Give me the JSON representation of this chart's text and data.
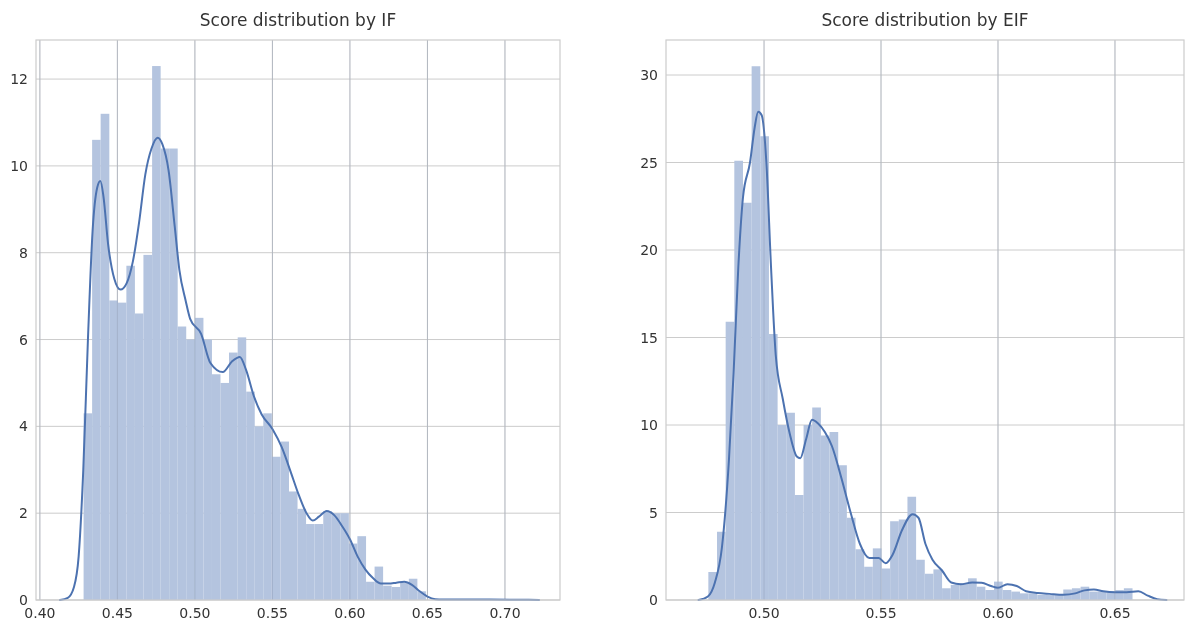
{
  "chart_data": [
    {
      "type": "histogram",
      "title": "Score distribution by IF",
      "color": "#b4c4df",
      "grid": true,
      "bins": [
        0.4282,
        0.4337,
        0.4392,
        0.4448,
        0.4503,
        0.4558,
        0.4613,
        0.4668,
        0.4724,
        0.4779,
        0.4834,
        0.4889,
        0.4944,
        0.5,
        0.5055,
        0.511,
        0.5165,
        0.522,
        0.5276,
        0.5331,
        0.5386,
        0.5441,
        0.5496,
        0.5552,
        0.5607,
        0.5662,
        0.5717,
        0.5772,
        0.5828,
        0.5883,
        0.5938,
        0.5993,
        0.6048,
        0.6104,
        0.6159,
        0.6214,
        0.6269,
        0.6324,
        0.638,
        0.6435,
        0.649
      ],
      "values": [
        4.3,
        10.6,
        11.2,
        6.9,
        6.85,
        7.7,
        6.6,
        7.95,
        12.3,
        10.4,
        10.4,
        6.3,
        6.0,
        6.5,
        6.0,
        5.2,
        5.0,
        5.7,
        6.05,
        4.8,
        4.0,
        4.3,
        3.3,
        3.65,
        2.5,
        2.1,
        1.75,
        1.75,
        2.05,
        2.0,
        2.0,
        1.3,
        1.47,
        0.42,
        0.77,
        0.33,
        0.3,
        0.4,
        0.49,
        0.2
      ],
      "series": [
        {
          "type": "line",
          "color": "#4c72b0",
          "x": [
            0.413,
            0.418,
            0.422,
            0.425,
            0.428,
            0.431,
            0.434,
            0.437,
            0.439,
            0.441,
            0.444,
            0.448,
            0.452,
            0.456,
            0.46,
            0.464,
            0.468,
            0.472,
            0.476,
            0.479,
            0.483,
            0.487,
            0.49,
            0.494,
            0.497,
            0.504,
            0.51,
            0.518,
            0.524,
            0.529,
            0.533,
            0.538,
            0.543,
            0.55,
            0.556,
            0.562,
            0.567,
            0.572,
            0.576,
            0.58,
            0.585,
            0.59,
            0.595,
            0.6,
            0.605,
            0.61,
            0.615,
            0.62,
            0.625,
            0.63,
            0.635,
            0.64,
            0.645,
            0.65,
            0.655,
            0.66,
            0.69,
            0.722
          ],
          "values": [
            0,
            0.05,
            0.3,
            1,
            3,
            6,
            8.5,
            9.5,
            9.65,
            9.3,
            8.2,
            7.4,
            7.15,
            7.3,
            7.8,
            8.7,
            9.8,
            10.4,
            10.65,
            10.5,
            9.9,
            8.6,
            7.6,
            6.9,
            6.47,
            6.13,
            5.46,
            5.25,
            5.5,
            5.6,
            5.3,
            4.7,
            4.28,
            3.94,
            3.52,
            2.93,
            2.42,
            2.0,
            1.83,
            1.92,
            2.05,
            1.95,
            1.7,
            1.4,
            1.0,
            0.7,
            0.5,
            0.38,
            0.38,
            0.4,
            0.42,
            0.35,
            0.2,
            0.08,
            0.02,
            0.01,
            0.01,
            0
          ]
        }
      ],
      "xlim": [
        0.3975,
        0.7355
      ],
      "ylim": [
        0,
        12.9
      ],
      "xticks": [
        {
          "value": 0.4,
          "label": "0.40"
        },
        {
          "value": 0.45,
          "label": "0.45"
        },
        {
          "value": 0.5,
          "label": "0.50"
        },
        {
          "value": 0.55,
          "label": "0.55"
        },
        {
          "value": 0.6,
          "label": "0.60"
        },
        {
          "value": 0.65,
          "label": "0.65"
        },
        {
          "value": 0.7,
          "label": "0.70"
        }
      ],
      "yticks": [
        0,
        2,
        4,
        6,
        8,
        10,
        12
      ]
    },
    {
      "type": "histogram",
      "title": "Score distribution by EIF",
      "color": "#b4c4df",
      "grid": true,
      "bins": [
        0.4762,
        0.4799,
        0.4836,
        0.4873,
        0.491,
        0.4947,
        0.4984,
        0.5021,
        0.5058,
        0.5095,
        0.5132,
        0.5169,
        0.5206,
        0.5243,
        0.528,
        0.5317,
        0.5354,
        0.5391,
        0.5428,
        0.5465,
        0.5502,
        0.5539,
        0.5576,
        0.5613,
        0.565,
        0.5687,
        0.5724,
        0.5761,
        0.5798,
        0.5835,
        0.5872,
        0.5909,
        0.5946,
        0.5983,
        0.602,
        0.6057,
        0.6094,
        0.6131,
        0.6168,
        0.6205,
        0.6242,
        0.6279,
        0.6316,
        0.6353,
        0.639,
        0.6427,
        0.6464,
        0.6501,
        0.6538,
        0.6575
      ],
      "values": [
        1.6,
        3.9,
        15.9,
        25.1,
        22.7,
        30.5,
        26.5,
        15.2,
        10.0,
        10.7,
        6.0,
        10.0,
        11.0,
        9.4,
        9.6,
        7.7,
        4.7,
        2.9,
        1.9,
        2.95,
        1.8,
        4.5,
        4.6,
        5.9,
        2.3,
        1.5,
        1.75,
        0.67,
        0.86,
        0.95,
        1.24,
        0.76,
        0.57,
        1.05,
        0.57,
        0.48,
        0.38,
        0.38,
        0.29,
        0.29,
        0.29,
        0.6,
        0.67,
        0.76,
        0.48,
        0.48,
        0.48,
        0.57,
        0.67
      ],
      "series": [
        {
          "type": "line",
          "color": "#4c72b0",
          "x": [
            0.472,
            0.476,
            0.479,
            0.482,
            0.485,
            0.487,
            0.489,
            0.491,
            0.494,
            0.496,
            0.4975,
            0.499,
            0.501,
            0.503,
            0.505,
            0.508,
            0.511,
            0.514,
            0.5155,
            0.518,
            0.5205,
            0.523,
            0.526,
            0.529,
            0.533,
            0.537,
            0.541,
            0.545,
            0.549,
            0.552,
            0.555,
            0.559,
            0.5635,
            0.566,
            0.569,
            0.572,
            0.576,
            0.58,
            0.584,
            0.589,
            0.593,
            0.597,
            0.6,
            0.604,
            0.608,
            0.612,
            0.617,
            0.622,
            0.628,
            0.633,
            0.637,
            0.641,
            0.645,
            0.65,
            0.655,
            0.66,
            0.664,
            0.668,
            0.672
          ],
          "values": [
            0,
            0.2,
            1,
            3,
            8,
            13,
            19,
            23,
            25,
            27,
            27.9,
            27.7,
            25,
            19,
            14,
            11.5,
            9.5,
            8.2,
            8.1,
            9.2,
            10.3,
            10.1,
            9.6,
            8.8,
            7,
            5,
            3.2,
            2.4,
            2.4,
            2.1,
            2.6,
            4.0,
            4.9,
            4.7,
            3.2,
            2.3,
            1.7,
            1.0,
            0.9,
            1.0,
            0.98,
            0.8,
            0.7,
            0.9,
            0.8,
            0.5,
            0.4,
            0.35,
            0.3,
            0.38,
            0.55,
            0.6,
            0.5,
            0.45,
            0.45,
            0.5,
            0.25,
            0.05,
            0
          ]
        }
      ],
      "xlim": [
        0.4581,
        0.6795
      ],
      "ylim": [
        0,
        32
      ],
      "xticks": [
        {
          "value": 0.5,
          "label": "0.50"
        },
        {
          "value": 0.55,
          "label": "0.55"
        },
        {
          "value": 0.6,
          "label": "0.60"
        },
        {
          "value": 0.65,
          "label": "0.65"
        }
      ],
      "yticks": [
        0,
        5,
        10,
        15,
        20,
        25,
        30
      ]
    }
  ]
}
